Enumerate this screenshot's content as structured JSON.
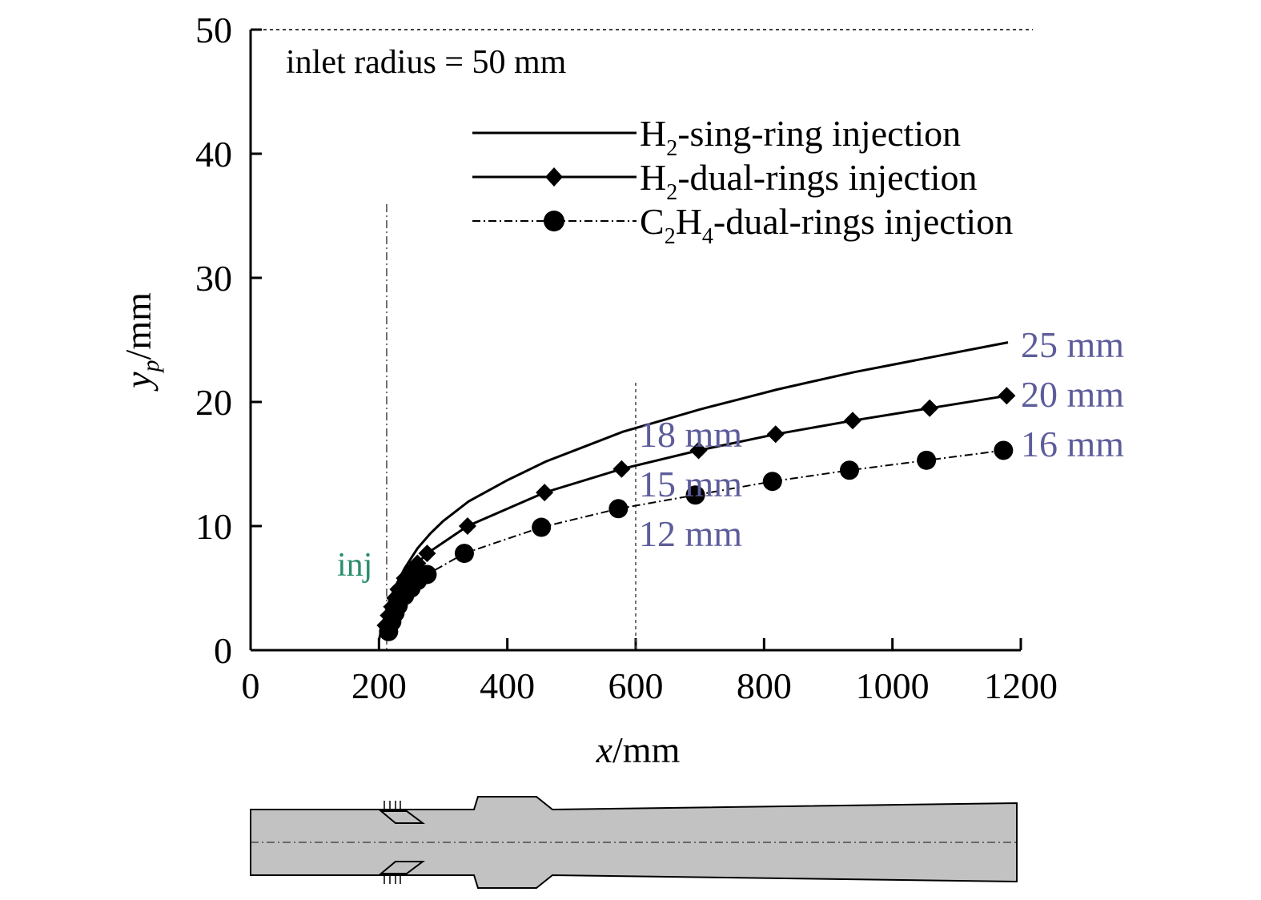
{
  "chart_data": {
    "type": "line",
    "xlabel": "x/mm",
    "ylabel": "yp/mm",
    "xlim": [
      0,
      1200
    ],
    "ylim": [
      0,
      50
    ],
    "xticks": [
      "0",
      "200",
      "400",
      "600",
      "800",
      "1000",
      "1200"
    ],
    "yticks": [
      "0",
      "10",
      "20",
      "30",
      "40",
      "50"
    ],
    "grid": false,
    "legend_position": "top-right",
    "annotations": {
      "inlet": "inlet radius = 50 mm",
      "inj": "inj",
      "end_labels": [
        "25 mm",
        "20 mm",
        "16 mm"
      ],
      "mid_labels": [
        "18 mm",
        "15 mm",
        "12 mm"
      ]
    },
    "reference_lines": {
      "inlet_radius_y": 50,
      "injection_x": 212,
      "station_x": 600
    },
    "series": [
      {
        "name": "H2-sing-ring injection",
        "legend_main": "H",
        "legend_sub": "2",
        "legend_rest": "-sing-ring injection",
        "style": "solid",
        "marker": "none",
        "x": [
          200,
          205,
          210,
          215,
          220,
          230,
          240,
          260,
          280,
          300,
          340,
          400,
          460,
          520,
          580,
          640,
          700,
          760,
          820,
          880,
          940,
          1000,
          1060,
          1120,
          1180
        ],
        "y": [
          0.8,
          2.0,
          3.0,
          3.8,
          4.5,
          5.6,
          6.6,
          8.2,
          9.4,
          10.4,
          12.0,
          13.7,
          15.2,
          16.4,
          17.6,
          18.5,
          19.4,
          20.2,
          21.0,
          21.7,
          22.4,
          23.0,
          23.6,
          24.2,
          24.8
        ]
      },
      {
        "name": "H2-dual-rings injection",
        "legend_main": "H",
        "legend_sub": "2",
        "legend_rest": "-dual-rings injection",
        "style": "solid",
        "marker": "diamond",
        "x": [
          210,
          215,
          220,
          225,
          230,
          240,
          250,
          260,
          275,
          338,
          458,
          578,
          698,
          818,
          938,
          1058,
          1178
        ],
        "y": [
          2.0,
          2.8,
          3.5,
          4.2,
          4.9,
          5.8,
          6.4,
          7.0,
          7.8,
          10.0,
          12.7,
          14.6,
          16.1,
          17.4,
          18.5,
          19.5,
          20.5
        ]
      },
      {
        "name": "C2H4-dual-rings injection",
        "legend_main": "C",
        "legend_sub": "2",
        "legend_mid": "H",
        "legend_sub2": "4",
        "legend_rest": "-dual-rings injection",
        "style": "dashdot",
        "marker": "circle",
        "x": [
          215,
          220,
          225,
          230,
          240,
          250,
          260,
          275,
          333,
          453,
          573,
          693,
          813,
          933,
          1053,
          1173
        ],
        "y": [
          1.5,
          2.3,
          3.0,
          3.6,
          4.4,
          5.0,
          5.6,
          6.1,
          7.8,
          9.9,
          11.4,
          12.5,
          13.6,
          14.5,
          15.3,
          16.1
        ]
      }
    ]
  }
}
